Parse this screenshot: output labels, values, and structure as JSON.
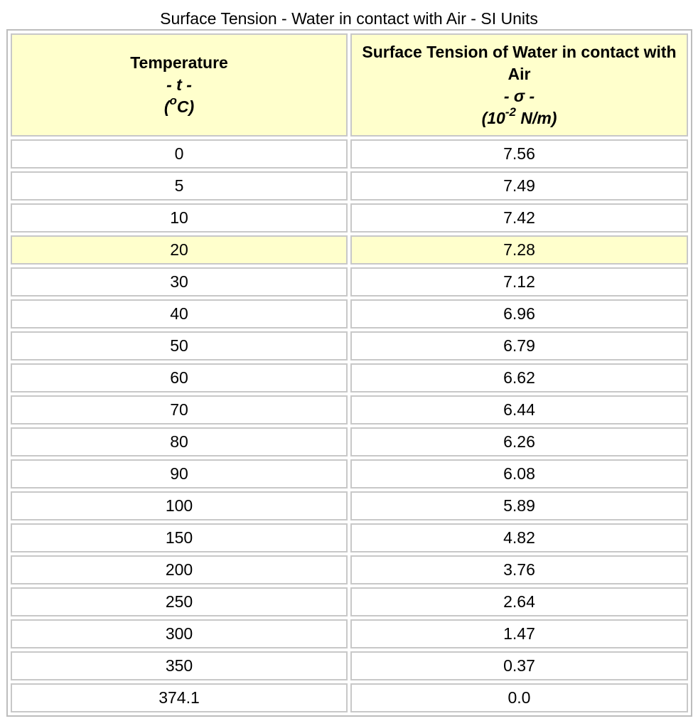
{
  "caption": "Surface Tension - Water in contact with Air - SI Units",
  "header": {
    "col1": {
      "title": "Temperature",
      "symbol": "- t -",
      "unit_open": "(",
      "unit_sup": "o",
      "unit_rest": "C)"
    },
    "col2": {
      "title": "Surface Tension of Water in contact with Air",
      "symbol": "- σ -",
      "unit_open": "(10",
      "unit_sup": "-2",
      "unit_rest": " N/m)"
    }
  },
  "rows": [
    {
      "t": "0",
      "sigma": "7.56"
    },
    {
      "t": "5",
      "sigma": "7.49"
    },
    {
      "t": "10",
      "sigma": "7.42"
    },
    {
      "t": "20",
      "sigma": "7.28"
    },
    {
      "t": "30",
      "sigma": "7.12"
    },
    {
      "t": "40",
      "sigma": "6.96"
    },
    {
      "t": "50",
      "sigma": "6.79"
    },
    {
      "t": "60",
      "sigma": "6.62"
    },
    {
      "t": "70",
      "sigma": "6.44"
    },
    {
      "t": "80",
      "sigma": "6.26"
    },
    {
      "t": "90",
      "sigma": "6.08"
    },
    {
      "t": "100",
      "sigma": "5.89"
    },
    {
      "t": "150",
      "sigma": "4.82"
    },
    {
      "t": "200",
      "sigma": "3.76"
    },
    {
      "t": "250",
      "sigma": "2.64"
    },
    {
      "t": "300",
      "sigma": "1.47"
    },
    {
      "t": "350",
      "sigma": "0.37"
    },
    {
      "t": "374.1",
      "sigma": "0.0"
    }
  ],
  "highlight_row_index": 3,
  "colors": {
    "header_bg": "#ffffcc",
    "highlight_bg": "#ffffcc",
    "border": "#c8c8c8"
  }
}
